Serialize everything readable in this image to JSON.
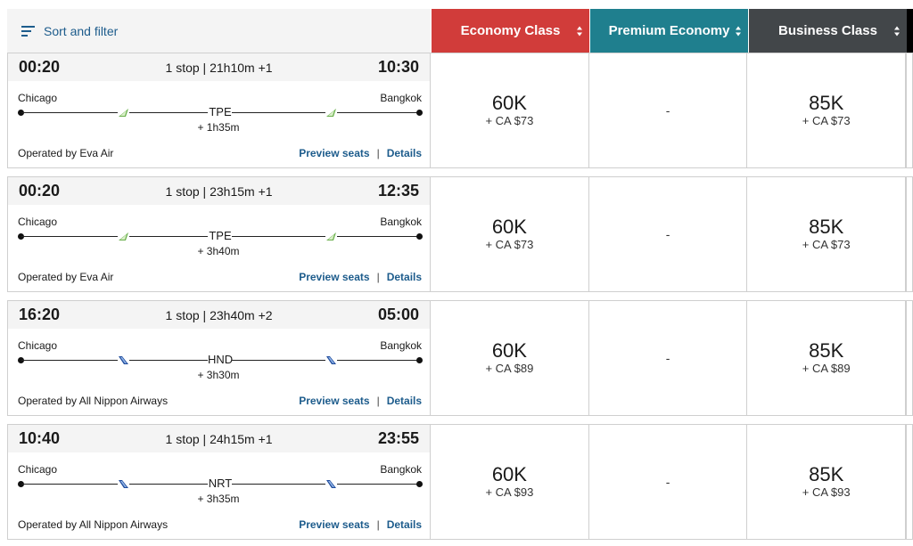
{
  "header": {
    "sort_label": "Sort and filter",
    "cabins": [
      "Economy Class",
      "Premium Economy",
      "Business Class"
    ],
    "colors": {
      "economy": "#d13c3a",
      "premium": "#1f7f8e",
      "business": "#424649",
      "link": "#1d5c8c"
    }
  },
  "links": {
    "preview": "Preview seats",
    "separator": "|",
    "details": "Details"
  },
  "flights": [
    {
      "depart": "00:20",
      "summary": "1 stop | 21h10m +1",
      "arrive": "10:30",
      "origin": "Chicago",
      "destination": "Bangkok",
      "stop": "TPE",
      "layover": "+ 1h35m",
      "airline_icon": "eva-air-plane-icon",
      "operated": "Operated by Eva Air",
      "economy": {
        "miles": "60K",
        "tax": "+ CA $73"
      },
      "premium": {
        "value": "-"
      },
      "business": {
        "miles": "85K",
        "tax": "+ CA $73"
      }
    },
    {
      "depart": "00:20",
      "summary": "1 stop | 23h15m +1",
      "arrive": "12:35",
      "origin": "Chicago",
      "destination": "Bangkok",
      "stop": "TPE",
      "layover": "+ 3h40m",
      "airline_icon": "eva-air-plane-icon",
      "operated": "Operated by Eva Air",
      "economy": {
        "miles": "60K",
        "tax": "+ CA $73"
      },
      "premium": {
        "value": "-"
      },
      "business": {
        "miles": "85K",
        "tax": "+ CA $73"
      }
    },
    {
      "depart": "16:20",
      "summary": "1 stop | 23h40m +2",
      "arrive": "05:00",
      "origin": "Chicago",
      "destination": "Bangkok",
      "stop": "HND",
      "layover": "+ 3h30m",
      "airline_icon": "ana-plane-icon",
      "operated": "Operated by All Nippon Airways",
      "economy": {
        "miles": "60K",
        "tax": "+ CA $89"
      },
      "premium": {
        "value": "-"
      },
      "business": {
        "miles": "85K",
        "tax": "+ CA $89"
      }
    },
    {
      "depart": "10:40",
      "summary": "1 stop | 24h15m +1",
      "arrive": "23:55",
      "origin": "Chicago",
      "destination": "Bangkok",
      "stop": "NRT",
      "layover": "+ 3h35m",
      "airline_icon": "ana-plane-icon",
      "operated": "Operated by All Nippon Airways",
      "economy": {
        "miles": "60K",
        "tax": "+ CA $93"
      },
      "premium": {
        "value": "-"
      },
      "business": {
        "miles": "85K",
        "tax": "+ CA $93"
      }
    }
  ]
}
